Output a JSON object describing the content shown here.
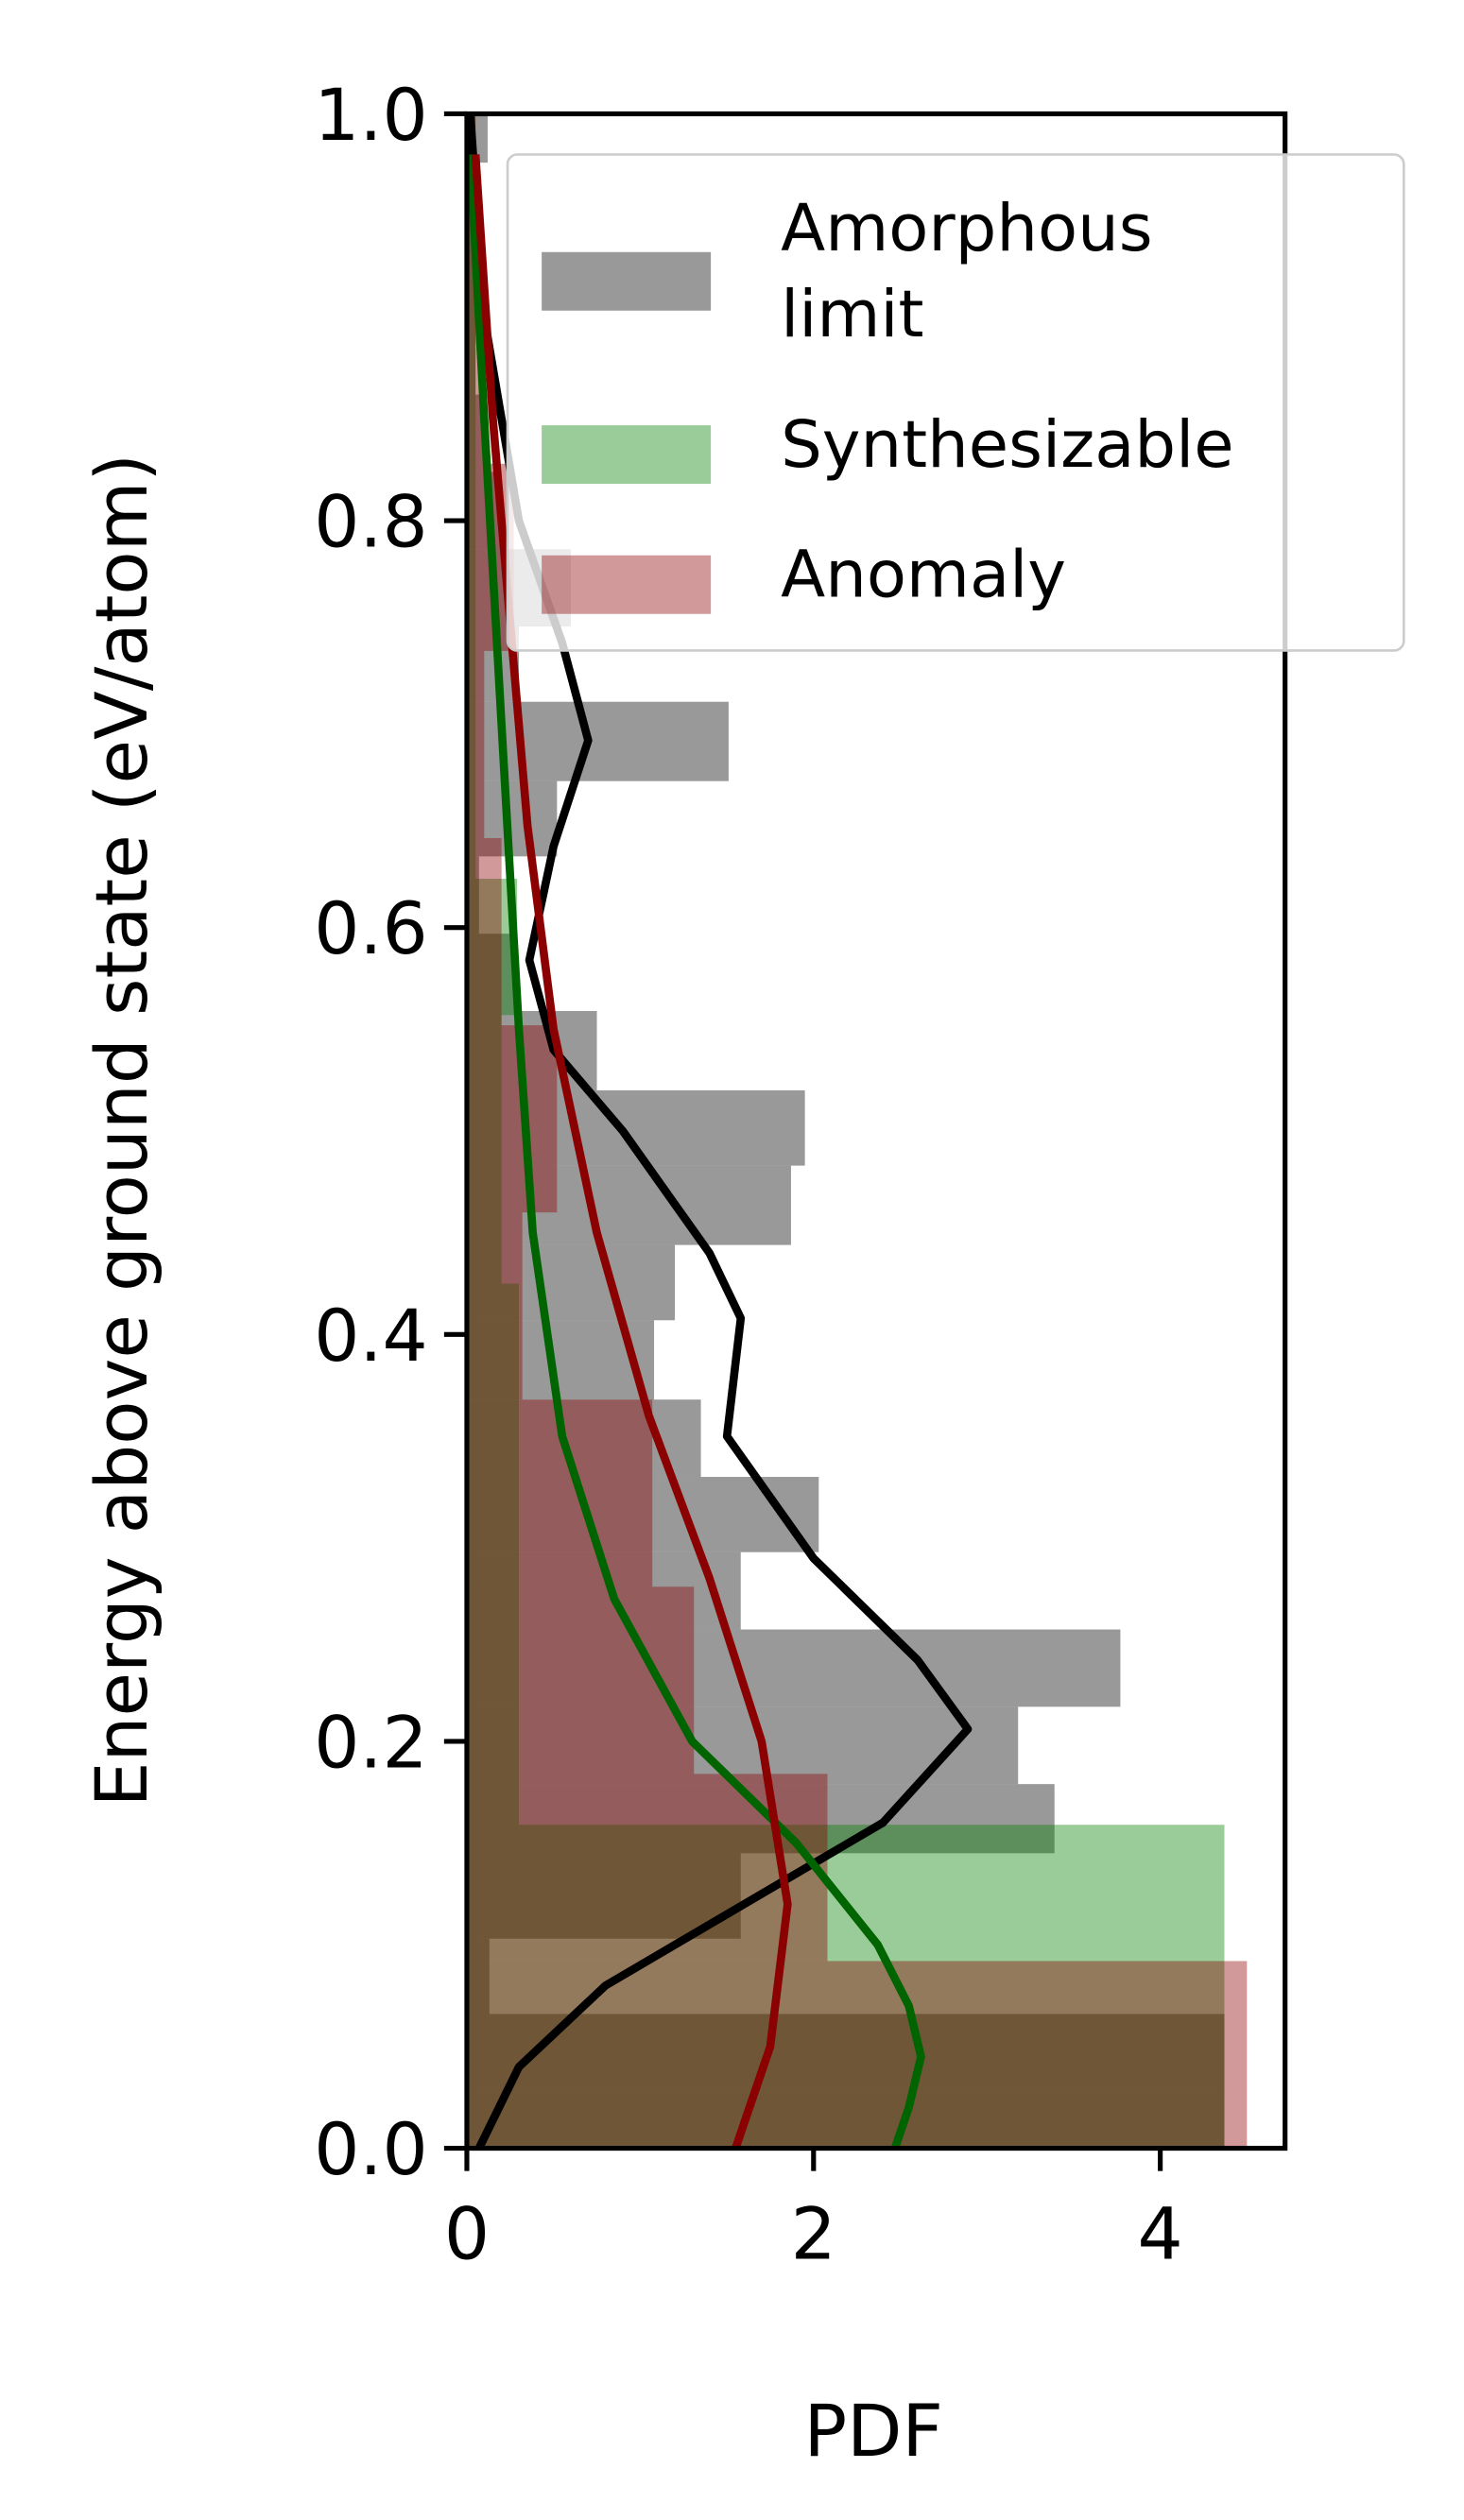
{
  "chart_data": {
    "type": "histogram",
    "orientation": "horizontal",
    "xlabel": "PDF",
    "ylabel": "Energy above ground state (eV/atom)",
    "xlim": [
      0,
      4.72
    ],
    "ylim": [
      0,
      1
    ],
    "xticks": [
      0,
      2,
      4
    ],
    "yticks": [
      {
        "value": 0,
        "label": "0.0"
      },
      0.2,
      0.4,
      0.6,
      0.8,
      {
        "value": 1,
        "label": "1.0"
      }
    ],
    "legend": "upper right",
    "series": [
      {
        "name": "Amorphous\nlimit",
        "color": "#000000",
        "opacity": 0.4,
        "bins": [
          0,
          0.028,
          0.066,
          0.103,
          0.145,
          0.179,
          0.217,
          0.255,
          0.293,
          0.33,
          0.368,
          0.407,
          0.444,
          0.483,
          0.52,
          0.559,
          0.597,
          0.635,
          0.672,
          0.711,
          0.748,
          0.786,
          0.824,
          0.862,
          0.9,
          0.938,
          0.976,
          1.014
        ],
        "values": [
          4.37,
          4.37,
          0.13,
          1.58,
          3.39,
          3.18,
          3.77,
          1.58,
          2.03,
          1.35,
          1.08,
          1.2,
          1.87,
          1.95,
          0.75,
          0.27,
          0.07,
          0.52,
          1.51,
          0.3,
          0.6,
          0.2,
          0.1,
          0.05,
          0.05,
          0.05,
          0.12
        ]
      },
      {
        "name": "Synthesizable",
        "color": "#008000",
        "opacity": 0.4,
        "bins": [
          0,
          0.093,
          0.159,
          0.226,
          0.292,
          0.358,
          0.425,
          0.491,
          0.557,
          0.624,
          0.69,
          0.756,
          0.823,
          0.889,
          0.955,
          1.021
        ],
        "values": [
          4.37,
          4.37,
          0.3,
          0.3,
          0.3,
          0.3,
          0.2,
          0.2,
          0.29,
          0.05,
          0.05,
          0.05,
          0.05,
          0.05,
          0.05
        ]
      },
      {
        "name": "Anomaly",
        "color": "#8b0000",
        "opacity": 0.4,
        "bins": [
          0,
          0.092,
          0.184,
          0.276,
          0.368,
          0.46,
          0.552,
          0.644,
          0.736,
          0.828,
          0.92,
          1.012
        ],
        "values": [
          4.5,
          2.08,
          1.31,
          1.07,
          0.32,
          0.52,
          0.2,
          0.1,
          0.27,
          0.1,
          0.05
        ]
      }
    ],
    "kde_lines": [
      {
        "color": "#000000",
        "energy": [
          0,
          0.04,
          0.08,
          0.12,
          0.16,
          0.206,
          0.24,
          0.29,
          0.35,
          0.408,
          0.44,
          0.5,
          0.54,
          0.584,
          0.64,
          0.692,
          0.74,
          0.8,
          0.9,
          1.0
        ],
        "pdf": [
          0.07,
          0.3,
          0.8,
          1.6,
          2.4,
          2.89,
          2.6,
          2.0,
          1.5,
          1.58,
          1.4,
          0.9,
          0.5,
          0.36,
          0.5,
          0.7,
          0.55,
          0.3,
          0.1,
          0.02
        ]
      },
      {
        "color": "#006400",
        "energy": [
          0,
          0.02,
          0.045,
          0.07,
          0.1,
          0.15,
          0.2,
          0.27,
          0.35,
          0.45,
          0.55,
          0.7,
          0.85,
          0.98
        ],
        "pdf": [
          2.47,
          2.55,
          2.62,
          2.55,
          2.37,
          1.9,
          1.3,
          0.85,
          0.55,
          0.38,
          0.3,
          0.2,
          0.1,
          0.02
        ]
      },
      {
        "color": "#8b0000",
        "energy": [
          0,
          0.05,
          0.12,
          0.2,
          0.28,
          0.36,
          0.45,
          0.55,
          0.65,
          0.75,
          0.85,
          0.98
        ],
        "pdf": [
          1.55,
          1.75,
          1.85,
          1.7,
          1.4,
          1.05,
          0.75,
          0.5,
          0.35,
          0.25,
          0.15,
          0.05
        ]
      }
    ]
  }
}
